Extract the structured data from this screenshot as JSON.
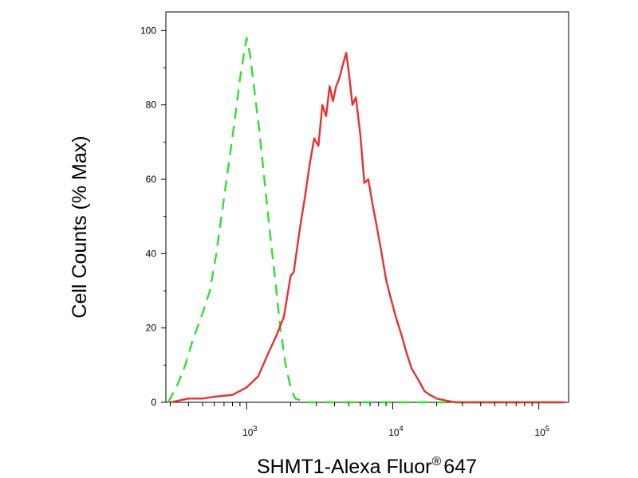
{
  "chart_data": {
    "type": "line",
    "title": "",
    "xlabel": "SHMT1-Alexa Fluor",
    "xlabel_superscript": "®",
    "xlabel_suffix": "647",
    "ylabel": "Cell Counts (% Max)",
    "x_scale": "log",
    "xlim": [
      280,
      160000
    ],
    "ylim": [
      0,
      105
    ],
    "grid": false,
    "legend": "none",
    "y_ticks": [
      {
        "value": 0,
        "label": "0"
      },
      {
        "value": 20,
        "label": "20"
      },
      {
        "value": 40,
        "label": "40"
      },
      {
        "value": 60,
        "label": "60"
      },
      {
        "value": 80,
        "label": "80"
      },
      {
        "value": 100,
        "label": "100"
      }
    ],
    "x_ticks": [
      {
        "value": 1000,
        "base": "10",
        "exp": "3"
      },
      {
        "value": 10000,
        "base": "10",
        "exp": "4"
      },
      {
        "value": 100000,
        "base": "10",
        "exp": "5"
      }
    ],
    "series": [
      {
        "style": "dashed",
        "color": "#33dd33",
        "x": [
          290,
          330,
          380,
          430,
          500,
          560,
          620,
          700,
          760,
          830,
          900,
          960,
          1000,
          1060,
          1130,
          1230,
          1340,
          1450,
          1570,
          1700,
          1850,
          2000,
          2150,
          2350,
          2600,
          2800,
          3200,
          5000,
          10000,
          30000,
          100000,
          150000
        ],
        "y": [
          0,
          4,
          10,
          17,
          24,
          30,
          40,
          55,
          65,
          76,
          87,
          94,
          98,
          93,
          84,
          72,
          58,
          45,
          33,
          20,
          10,
          4,
          1,
          0.5,
          0,
          0,
          0,
          0,
          0,
          0,
          0,
          0
        ]
      },
      {
        "style": "solid",
        "color": "#e83030",
        "x": [
          300,
          400,
          500,
          600,
          800,
          1000,
          1200,
          1400,
          1600,
          1800,
          2000,
          2100,
          2300,
          2500,
          2700,
          2900,
          3100,
          3300,
          3500,
          3700,
          3900,
          4100,
          4300,
          4500,
          4800,
          5000,
          5300,
          5600,
          6000,
          6400,
          6800,
          7300,
          7800,
          8400,
          9000,
          9700,
          10500,
          11500,
          12500,
          13500,
          15000,
          16500,
          18000,
          20000,
          23000,
          27000,
          32000,
          50000,
          100000,
          150000
        ],
        "y": [
          0,
          1,
          1,
          1.5,
          2,
          4,
          7,
          13,
          18,
          23,
          34,
          35,
          46,
          55,
          64,
          71,
          69,
          80,
          77,
          85,
          81,
          85,
          87,
          90,
          94,
          89,
          80,
          82,
          72,
          59,
          60,
          53,
          47,
          40,
          33,
          28,
          23,
          18,
          13,
          9,
          6,
          3,
          2,
          1,
          0.5,
          0,
          0,
          0,
          0,
          0
        ]
      }
    ]
  }
}
